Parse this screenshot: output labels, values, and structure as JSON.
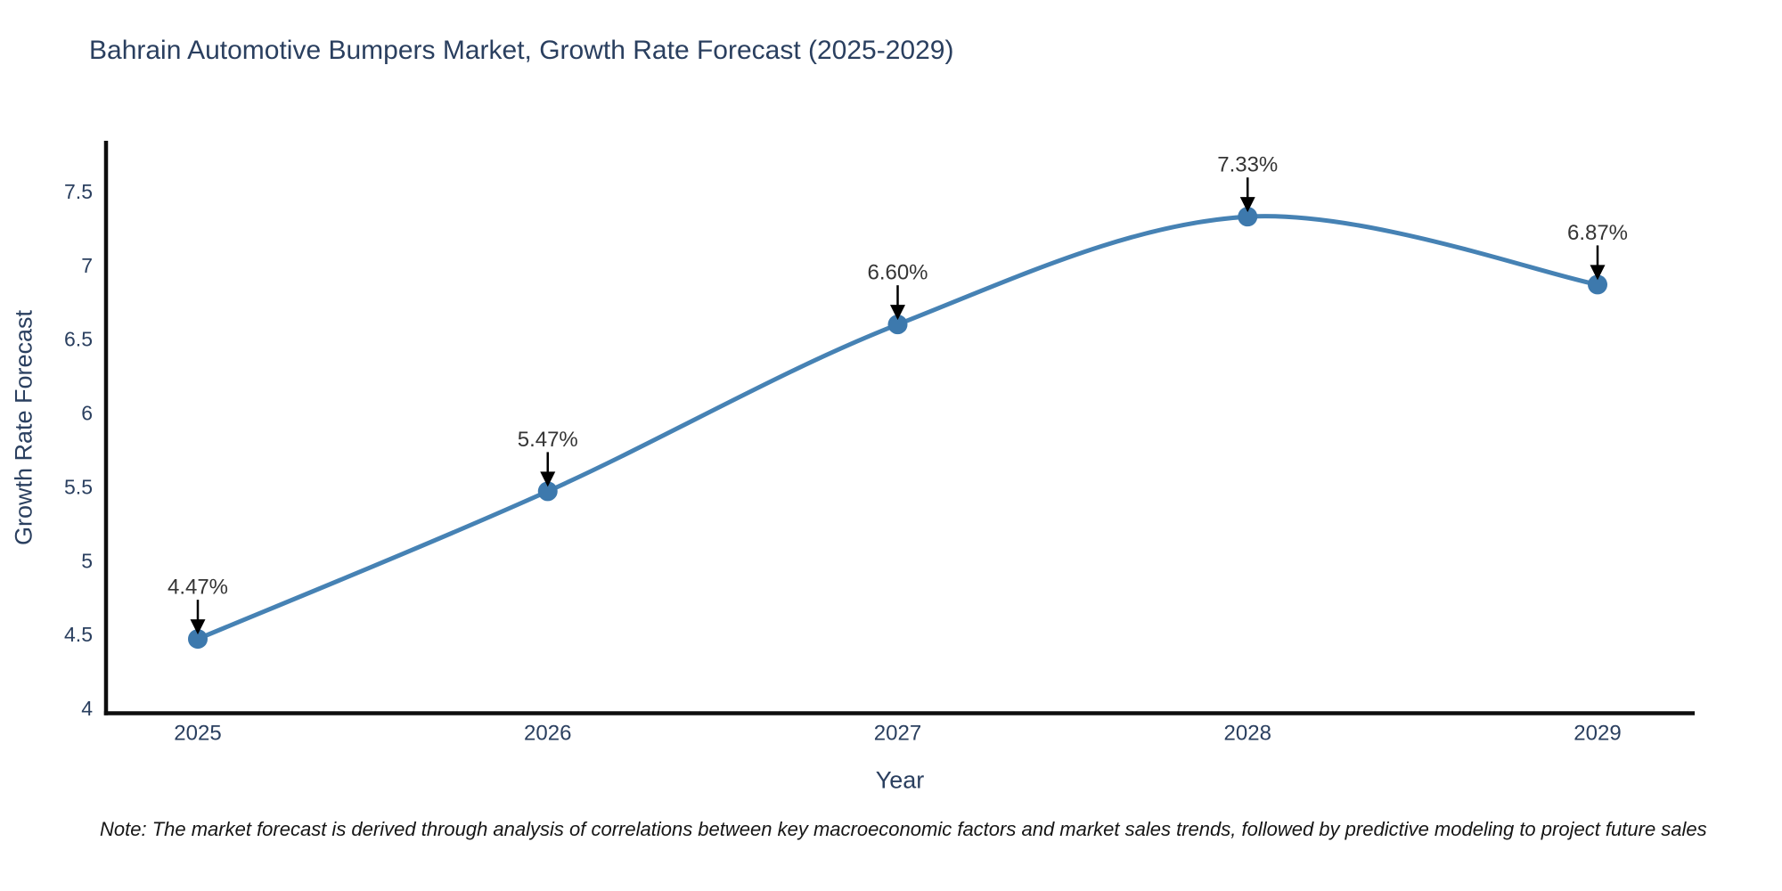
{
  "note": "Note: The market forecast is derived through analysis of correlations between key macroeconomic factors and market sales trends, followed by predictive modeling to project future sales",
  "colors": {
    "line": "#4682b4",
    "marker": "#3d79ad",
    "axis": "#0d0d0d",
    "tick_label": "#2a3f5f",
    "annotation_text": "#353535",
    "annotation_arrow": "#000000",
    "title_text": "#2a3f5f",
    "background": "#ffffff"
  },
  "chart_data": {
    "type": "line",
    "title": "Bahrain Automotive Bumpers Market, Growth Rate Forecast (2025-2029)",
    "x": [
      2025,
      2026,
      2027,
      2028,
      2029
    ],
    "y": [
      4.47,
      5.47,
      6.6,
      7.33,
      6.87
    ],
    "point_labels": [
      "4.47%",
      "5.47%",
      "6.60%",
      "7.33%",
      "6.87%"
    ],
    "xlabel": "Year",
    "ylabel": "Growth Rate Forecast",
    "yticks": [
      4,
      4.5,
      5,
      5.5,
      6,
      6.5,
      7,
      7.5
    ],
    "ylim": [
      3.96,
      7.88
    ],
    "line_shape": "spline",
    "grid": false,
    "legend": "none",
    "markers": true,
    "annotations_have_arrows": true
  }
}
